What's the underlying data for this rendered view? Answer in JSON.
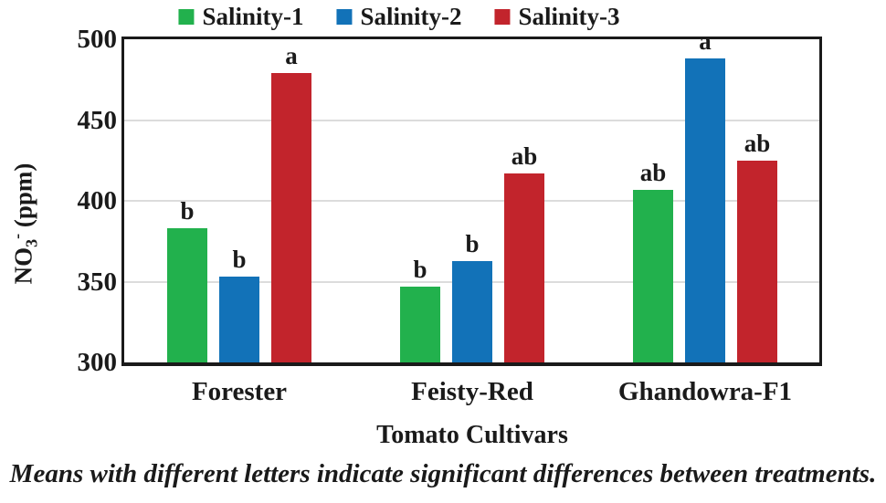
{
  "colors": {
    "salinity1_green": "#22b14d",
    "salinity2_blue": "#1272b8",
    "salinity3_red": "#c2242c",
    "gridline": "#dcdcdc",
    "axis": "#1a1a1a",
    "text": "#1a1a1a"
  },
  "legend": {
    "items": [
      {
        "label": "Salinity-1",
        "color": "#22b14d"
      },
      {
        "label": "Salinity-2",
        "color": "#1272b8"
      },
      {
        "label": "Salinity-3",
        "color": "#c2242c"
      }
    ]
  },
  "chart_data": {
    "type": "bar",
    "title": "",
    "categories": [
      "Forester",
      "Feisty-Red",
      "Ghandowra-F1"
    ],
    "series": [
      {
        "name": "Salinity-1",
        "color": "#22b14d",
        "values": [
          383,
          347,
          407
        ],
        "letters": [
          "b",
          "b",
          "ab"
        ]
      },
      {
        "name": "Salinity-2",
        "color": "#1272b8",
        "values": [
          353,
          363,
          488
        ],
        "letters": [
          "b",
          "b",
          "a"
        ]
      },
      {
        "name": "Salinity-3",
        "color": "#c2242c",
        "values": [
          479,
          417,
          425
        ],
        "letters": [
          "a",
          "ab",
          "ab"
        ]
      }
    ],
    "xlabel": "Tomato Cultivars",
    "ylabel": "NO3- (ppm)",
    "ylabel_parts": {
      "prefix": "NO",
      "sub": "3",
      "sup": "-",
      "suffix": " (ppm)"
    },
    "ylim": [
      300,
      500
    ],
    "yticks": [
      300,
      350,
      400,
      450,
      500
    ],
    "grid": true,
    "legend_position": "top"
  },
  "caption": "Means with different letters indicate significant differences between treatments."
}
